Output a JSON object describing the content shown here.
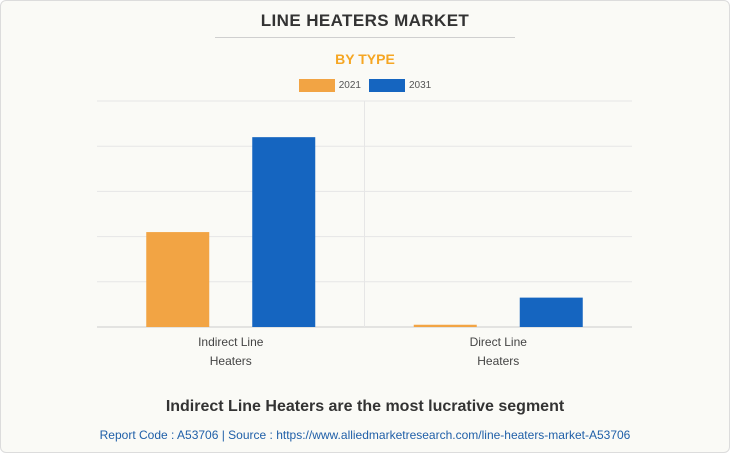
{
  "header": {
    "title": "LINE HEATERS MARKET",
    "subtitle": "BY TYPE"
  },
  "chart_data": {
    "type": "bar",
    "categories": [
      [
        "Indirect Line",
        "Heaters"
      ],
      [
        "Direct Line",
        "Heaters"
      ]
    ],
    "series": [
      {
        "name": "2021",
        "color": "#f2a444",
        "values": [
          2.1,
          0.05
        ]
      },
      {
        "name": "2031",
        "color": "#1565c0",
        "values": [
          4.2,
          0.65
        ]
      }
    ],
    "ylim": [
      0,
      5
    ],
    "y_ticks_visible": false,
    "grid": true,
    "legend_position": "top-center"
  },
  "footer": {
    "headline": "Indirect Line Heaters are the most lucrative segment",
    "source_line": "Report Code : A53706  |  Source : https://www.alliedmarketresearch.com/line-heaters-market-A53706"
  }
}
